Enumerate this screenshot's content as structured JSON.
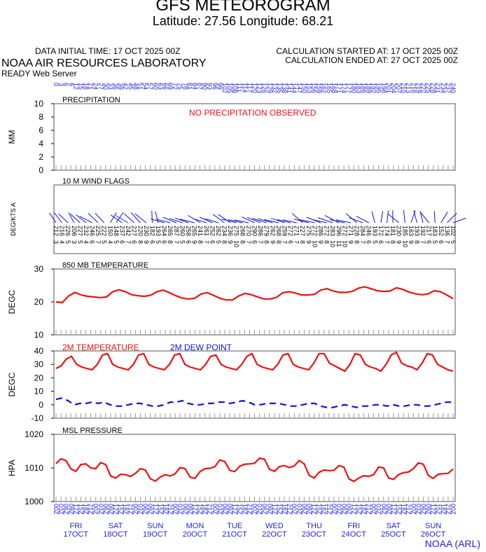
{
  "header": {
    "title": "GFS METEOROGRAM",
    "latlon": "Latitude: 27.56 Longitude:  68.21",
    "init_time": "DATA INITIAL TIME: 17 OCT 2025 00Z",
    "calc_started": "CALCULATION STARTED AT: 17 OCT 2025 00Z",
    "calc_ended": "CALCULATION ENDED AT: 27 OCT 2025 00Z",
    "org": "NOAA AIR RESOURCES LABORATORY",
    "server": "READY Web Server"
  },
  "footer": {
    "credit": "NOAA (ARL)"
  },
  "colors": {
    "temperature": "#ee1111",
    "dewpoint": "#1111dd",
    "axis_text_blue": "#2222dd",
    "frame": "#000000"
  },
  "chart_data": [
    {
      "type": "bar",
      "name_label": "PRECIPITATION",
      "ylabel": "MM",
      "ylim": [
        0,
        10
      ],
      "yticks": [
        0,
        2,
        4,
        6,
        8,
        10
      ],
      "annotation": "NO PRECIPITATION OBSERVED",
      "forecast_hours": [
        0,
        3,
        6,
        9,
        12,
        15,
        18,
        21,
        24,
        27,
        30,
        33,
        36,
        39,
        42,
        45,
        48,
        51,
        54,
        57,
        60,
        63,
        66,
        69,
        72,
        75,
        78,
        81,
        84,
        87,
        90,
        93,
        96,
        99,
        102,
        105,
        108,
        111,
        114,
        117,
        120,
        123,
        126,
        129,
        132,
        135,
        138,
        141,
        144,
        147,
        150,
        153,
        156,
        159,
        162,
        165,
        168,
        171,
        174,
        177,
        180,
        183,
        186,
        189,
        192,
        195,
        198,
        201,
        204,
        207,
        210,
        213,
        216,
        219,
        222,
        225,
        228,
        231,
        234,
        237,
        240
      ]
    },
    {
      "type": "table",
      "name_label": "10 M  WIND FLAGS",
      "ylabel": "DEG/KTS  A",
      "direction_deg": [
        212,
        216,
        226,
        206,
        227,
        232,
        246,
        225,
        222,
        150,
        148,
        237,
        242,
        227,
        220,
        230,
        182,
        193,
        264,
        265,
        287,
        260,
        258,
        265,
        241,
        261,
        252,
        262,
        234,
        236,
        275,
        268,
        270,
        290,
        286,
        279,
        262,
        268,
        259,
        272,
        271,
        227,
        275,
        272,
        286,
        272,
        283,
        296,
        272,
        271,
        228,
        284,
        246,
        193,
        172,
        174,
        181,
        230,
        185,
        163,
        193,
        192,
        217,
        183,
        152,
        136,
        102
      ],
      "speed_kts": [
        3,
        4,
        5,
        3,
        5,
        4,
        6,
        7,
        5,
        4,
        5,
        6,
        7,
        6,
        8,
        9,
        6,
        5,
        6,
        8,
        7,
        5,
        6,
        9,
        8,
        7,
        6,
        5,
        8,
        9,
        10,
        8,
        7,
        6,
        7,
        8,
        9,
        8,
        7,
        6,
        7,
        8,
        9,
        10,
        9,
        8,
        10,
        11,
        10,
        9,
        8,
        7,
        6,
        5,
        6,
        7,
        8,
        9,
        10,
        9,
        8,
        7,
        6,
        5,
        6,
        7,
        5
      ]
    },
    {
      "type": "line",
      "name_label": "850 MB  TEMPERATURE",
      "ylabel": "DEGC",
      "ylim": [
        10,
        30
      ],
      "yticks": [
        10,
        20,
        30
      ],
      "series": [
        {
          "values": [
            20.0,
            19.8,
            21.8,
            22.9,
            22.1,
            21.7,
            21.5,
            21.3,
            21.5,
            23.1,
            23.7,
            23.1,
            22.2,
            21.9,
            21.7,
            22.0,
            23.1,
            23.6,
            22.8,
            21.9,
            21.2,
            20.9,
            21.1,
            22.4,
            22.8,
            22.0,
            21.1,
            20.6,
            20.6,
            21.8,
            22.6,
            22.2,
            21.5,
            20.9,
            20.9,
            21.4,
            22.8,
            23.1,
            22.7,
            22.1,
            22.1,
            22.3,
            23.6,
            24.0,
            23.3,
            22.9,
            22.9,
            23.2,
            24.2,
            24.6,
            24.0,
            23.4,
            23.2,
            23.3,
            24.3,
            23.8,
            23.0,
            22.5,
            22.2,
            22.4,
            23.4,
            23.1,
            22.1,
            21.0
          ]
        }
      ]
    },
    {
      "type": "line",
      "ylabel": "DEGC",
      "ylim": [
        -10,
        40
      ],
      "yticks": [
        -10,
        0,
        10,
        20,
        30,
        40
      ],
      "series": [
        {
          "name": "2M TEMPERATURE",
          "values": [
            27,
            29,
            34,
            36,
            30,
            28,
            27,
            26,
            30,
            37,
            38,
            30,
            28,
            27,
            26,
            30,
            37,
            38,
            30,
            28,
            27,
            26,
            30,
            37,
            38,
            30,
            28,
            27,
            26,
            30,
            36,
            37,
            30,
            28,
            27,
            26,
            30,
            36,
            38,
            30,
            28,
            27,
            26,
            30,
            37,
            38,
            30,
            28,
            27,
            26,
            31,
            38,
            38,
            31,
            29,
            27,
            25,
            30,
            38,
            37,
            30,
            28,
            27,
            25,
            30,
            37,
            39,
            31,
            29,
            28,
            26,
            31,
            38,
            37,
            30,
            28,
            26,
            25
          ]
        },
        {
          "name": "2M  DEW POINT",
          "values": [
            4,
            5,
            3,
            0,
            1,
            1,
            2,
            1,
            2,
            0,
            -1,
            -1,
            0,
            1,
            1,
            0,
            -1,
            -1,
            0,
            2,
            2,
            3,
            1,
            0,
            0,
            1,
            1,
            2,
            2,
            1,
            2,
            3,
            2,
            0,
            0,
            1,
            1,
            1,
            0,
            -1,
            -1,
            0,
            1,
            1,
            -1,
            -2,
            -2,
            -1,
            0,
            -1,
            -2,
            -1,
            -1,
            0,
            0,
            -1,
            0,
            -1,
            -1,
            0,
            0,
            -1,
            -1,
            0,
            1,
            2,
            2
          ]
        }
      ]
    },
    {
      "type": "line",
      "name_label": "MSL PRESSURE",
      "ylabel": "HPA",
      "ylim": [
        1000,
        1020
      ],
      "yticks": [
        1000,
        1010,
        1020
      ],
      "series": [
        {
          "values": [
            1011.3,
            1012.7,
            1012.2,
            1009.7,
            1009.0,
            1011.0,
            1011.2,
            1010.0,
            1009.8,
            1011.6,
            1011.0,
            1007.6,
            1007.0,
            1008.1,
            1008.0,
            1007.5,
            1008.4,
            1009.8,
            1009.4,
            1006.8,
            1006.1,
            1007.3,
            1008.0,
            1007.6,
            1008.3,
            1010.1,
            1009.8,
            1007.3,
            1006.9,
            1008.9,
            1009.8,
            1009.9,
            1010.4,
            1012.4,
            1011.9,
            1009.3,
            1008.9,
            1010.5,
            1011.1,
            1011.2,
            1011.4,
            1012.9,
            1012.6,
            1009.6,
            1009.0,
            1010.4,
            1010.7,
            1010.1,
            1010.6,
            1012.2,
            1011.2,
            1007.8,
            1007.0,
            1008.7,
            1009.4,
            1009.2,
            1009.3,
            1010.7,
            1010.2,
            1006.8,
            1006.0,
            1007.0,
            1007.7,
            1007.5,
            1008.0,
            1010.3,
            1010.0,
            1007.0,
            1006.6,
            1008.0,
            1008.6,
            1008.8,
            1009.8,
            1011.5,
            1011.1,
            1007.8,
            1006.9,
            1008.1,
            1008.3,
            1008.4,
            1009.7
          ]
        }
      ]
    }
  ],
  "time_axis": {
    "hour_labels": [
      "00Z",
      "03Z",
      "06Z",
      "09Z",
      "12Z",
      "15Z",
      "18Z",
      "21Z"
    ],
    "days": [
      {
        "weekday": "FRI",
        "date": "17OCT"
      },
      {
        "weekday": "SAT",
        "date": "18OCT"
      },
      {
        "weekday": "SUN",
        "date": "19OCT"
      },
      {
        "weekday": "MON",
        "date": "20OCT"
      },
      {
        "weekday": "TUE",
        "date": "21OCT"
      },
      {
        "weekday": "WED",
        "date": "22OCT"
      },
      {
        "weekday": "THU",
        "date": "23OCT"
      },
      {
        "weekday": "FRI",
        "date": "24OCT"
      },
      {
        "weekday": "SAT",
        "date": "25OCT"
      },
      {
        "weekday": "SUN",
        "date": "26OCT"
      }
    ]
  }
}
